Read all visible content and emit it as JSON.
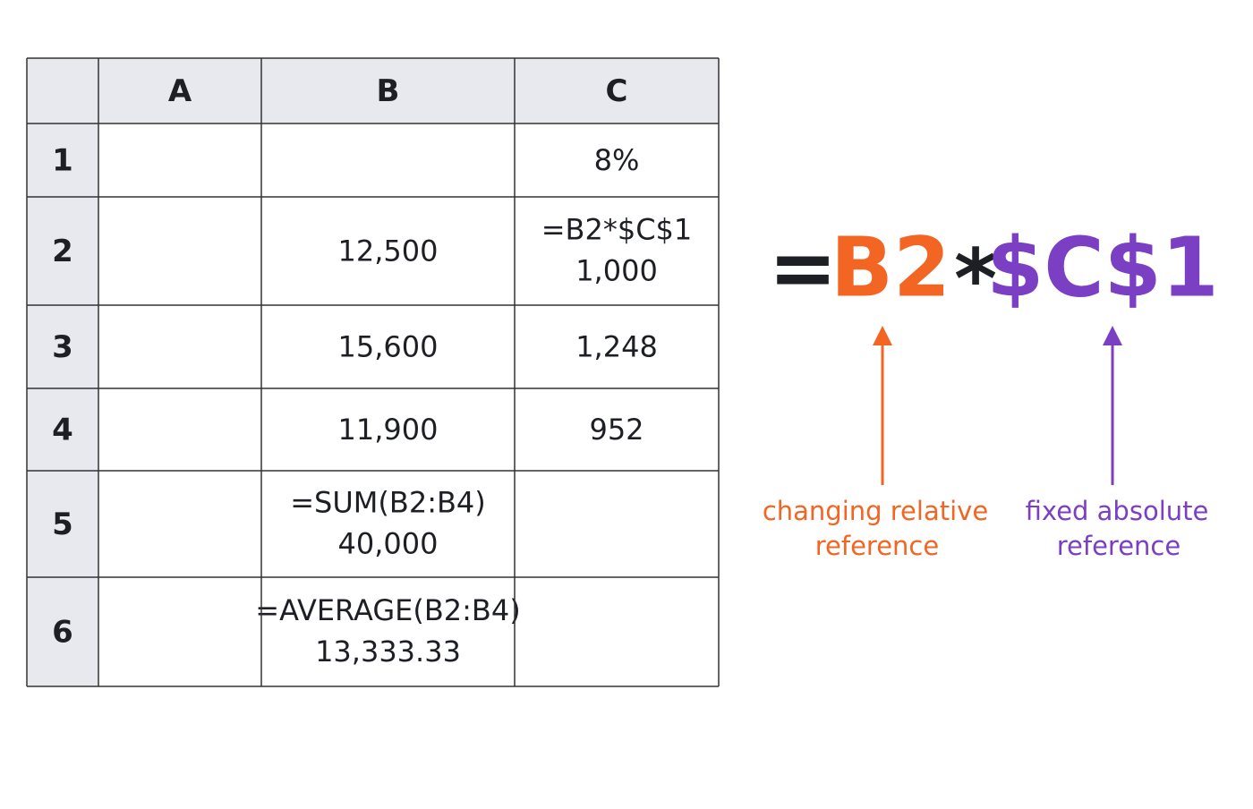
{
  "table": {
    "columns": [
      "A",
      "B",
      "C"
    ],
    "rows": [
      {
        "label": "1",
        "C": {
          "value": "8%"
        }
      },
      {
        "label": "2",
        "B": {
          "value": "12,500"
        },
        "C": {
          "formula": "=B2*$C$1",
          "value": "1,000"
        }
      },
      {
        "label": "3",
        "B": {
          "value": "15,600"
        },
        "C": {
          "value": "1,248"
        }
      },
      {
        "label": "4",
        "B": {
          "value": "11,900"
        },
        "C": {
          "value": "952"
        }
      },
      {
        "label": "5",
        "B": {
          "formula": "=SUM(B2:B4)",
          "value": "40,000"
        }
      },
      {
        "label": "6",
        "B": {
          "formula": "=AVERAGE(B2:B4)",
          "value": "13,333.33"
        }
      }
    ]
  },
  "formula": {
    "equals": "=",
    "relative": "B2",
    "operator": "*",
    "absolute": "$C$1"
  },
  "annotations": {
    "relative": [
      "changing relative",
      "reference"
    ],
    "absolute": [
      "fixed absolute",
      "reference"
    ]
  }
}
